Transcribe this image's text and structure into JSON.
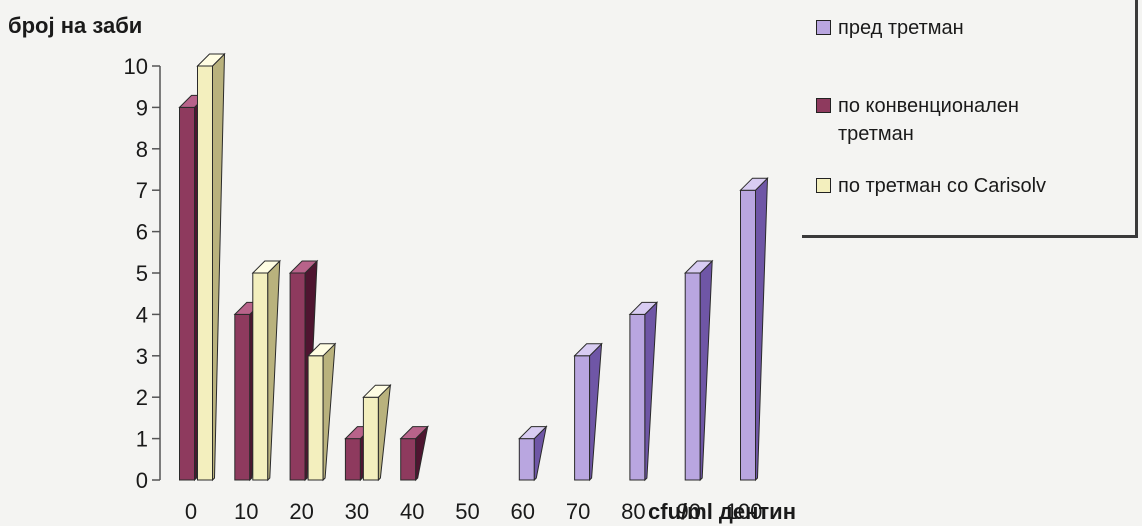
{
  "chart_data": {
    "type": "bar",
    "categories": [
      "0",
      "10",
      "20",
      "30",
      "40",
      "50",
      "60",
      "70",
      "80",
      "90",
      "100"
    ],
    "series": [
      {
        "name": "пред третман",
        "values": [
          0,
          0,
          0,
          0,
          0,
          0,
          1,
          3,
          4,
          5,
          7
        ],
        "color": "#b9a6e0",
        "side_color": "#6f56a6",
        "top_color": "#d8ccf2"
      },
      {
        "name": "по конвенционален третман",
        "values": [
          9,
          4,
          5,
          1,
          1,
          0,
          0,
          0,
          0,
          0,
          0
        ],
        "color": "#8e3a5e",
        "side_color": "#4e1530",
        "top_color": "#b8638a"
      },
      {
        "name": "по третман со Carisolv",
        "values": [
          10,
          5,
          3,
          2,
          0,
          0,
          0,
          0,
          0,
          0,
          0
        ],
        "color": "#f3efbe",
        "side_color": "#b9b27d",
        "top_color": "#fffde3"
      }
    ],
    "xlabel": "cfu/ml дентин",
    "ylabel": "број на заби",
    "ylim": [
      0,
      10
    ],
    "yticks": [
      "0",
      "1",
      "2",
      "3",
      "4",
      "5",
      "6",
      "7",
      "8",
      "9",
      "10"
    ],
    "grid": false,
    "legend_position": "top-right"
  },
  "legend": {
    "items": [
      {
        "lines": [
          "пред третман"
        ]
      },
      {
        "lines": [
          "по конвенционален",
          "третман"
        ]
      },
      {
        "lines": [
          "по третман со Carisolv"
        ]
      }
    ]
  }
}
